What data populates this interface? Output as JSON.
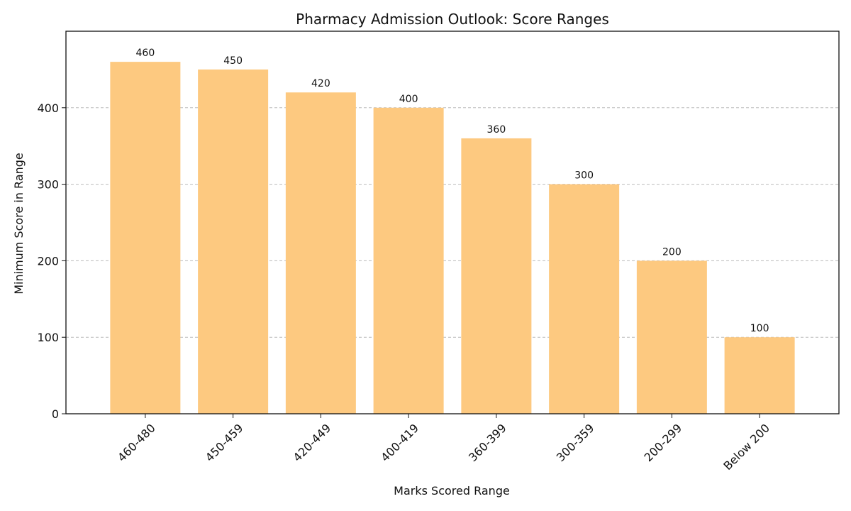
{
  "chart_data": {
    "type": "bar",
    "title": "Pharmacy Admission Outlook: Score Ranges",
    "xlabel": "Marks Scored Range",
    "ylabel": "Minimum Score in Range",
    "categories": [
      "460-480",
      "450-459",
      "420-449",
      "400-419",
      "360-399",
      "300-359",
      "200-299",
      "Below 200"
    ],
    "values": [
      460,
      450,
      420,
      400,
      360,
      300,
      200,
      100
    ],
    "data_labels": [
      "460",
      "450",
      "420",
      "400",
      "360",
      "300",
      "200",
      "100"
    ],
    "ylim": [
      0,
      500
    ],
    "yticks": [
      0,
      100,
      200,
      300,
      400
    ],
    "ytick_labels": [
      "0",
      "100",
      "200",
      "300",
      "400"
    ],
    "grid": "y-dashed",
    "bar_color": "#fdc980"
  }
}
